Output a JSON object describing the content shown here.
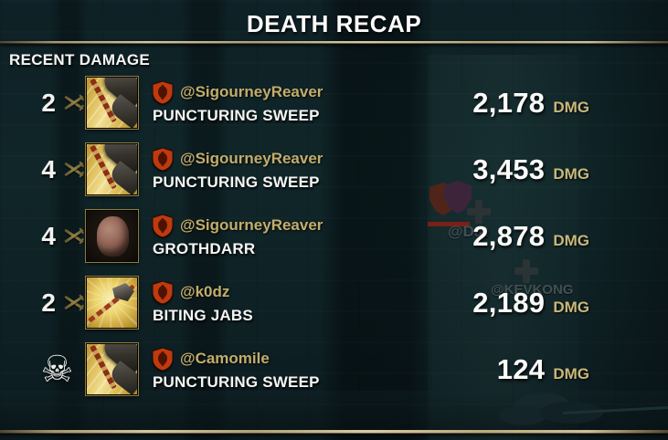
{
  "title": "DEATH RECAP",
  "section_label": "RECENT DAMAGE",
  "damage_unit": "DMG",
  "icons": {
    "skull_glyph": "☠"
  },
  "colors": {
    "white_text": "#f5f5f3",
    "gold_name": "#c3ad6c",
    "gold_unit": "#c9b87b",
    "divider_gold": "#c6b88d",
    "shield_fill": "#bf3a0e",
    "shield_emblem": "#4d1302"
  },
  "rows": [
    {
      "count": "2",
      "count_icon": "crossed-swords",
      "ability_icon": "puncturing-sweep",
      "player": "@SigourneyReaver",
      "ability": "PUNCTURING SWEEP",
      "damage": "2,178"
    },
    {
      "count": "4",
      "count_icon": "crossed-swords",
      "ability_icon": "puncturing-sweep",
      "player": "@SigourneyReaver",
      "ability": "PUNCTURING SWEEP",
      "damage": "3,453"
    },
    {
      "count": "4",
      "count_icon": "crossed-swords",
      "ability_icon": "grothdarr",
      "player": "@SigourneyReaver",
      "ability": "GROTHDARR",
      "damage": "2,878"
    },
    {
      "count": "2",
      "count_icon": "crossed-swords",
      "ability_icon": "biting-jabs",
      "player": "@k0dz",
      "ability": "BITING JABS",
      "damage": "2,189"
    },
    {
      "count": "",
      "count_icon": "skull",
      "ability_icon": "puncturing-sweep",
      "player": "@Camomile",
      "ability": "PUNCTURING SWEEP",
      "damage": "124"
    }
  ],
  "background_overlay": {
    "faint_nameplate_1": "@Dat",
    "faint_nameplate_2": "@KEVKONG"
  }
}
